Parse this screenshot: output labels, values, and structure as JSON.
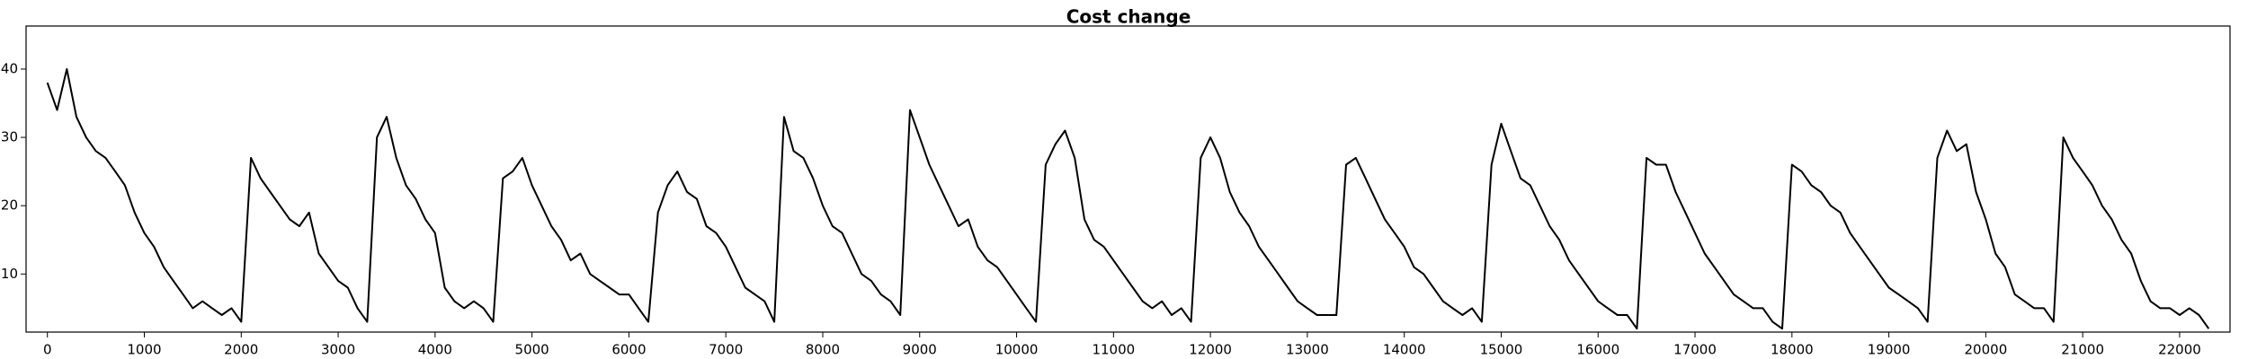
{
  "chart_data": {
    "type": "line",
    "title": "Cost change",
    "x": [
      0,
      100,
      200,
      300,
      400,
      500,
      600,
      700,
      800,
      900,
      1000,
      1100,
      1200,
      1300,
      1400,
      1500,
      1600,
      1700,
      1800,
      1900,
      2000,
      2100,
      2200,
      2300,
      2400,
      2500,
      2600,
      2700,
      2800,
      2900,
      3000,
      3100,
      3200,
      3300,
      3400,
      3500,
      3600,
      3700,
      3800,
      3900,
      4000,
      4100,
      4200,
      4300,
      4400,
      4500,
      4600,
      4700,
      4800,
      4900,
      5000,
      5100,
      5200,
      5300,
      5400,
      5500,
      5600,
      5700,
      5800,
      5900,
      6000,
      6100,
      6200,
      6300,
      6400,
      6500,
      6600,
      6700,
      6800,
      6900,
      7000,
      7100,
      7200,
      7300,
      7400,
      7500,
      7600,
      7700,
      7800,
      7900,
      8000,
      8100,
      8200,
      8300,
      8400,
      8500,
      8600,
      8700,
      8800,
      8900,
      9000,
      9100,
      9200,
      9300,
      9400,
      9500,
      9600,
      9700,
      9800,
      9900,
      10000,
      10100,
      10200,
      10300,
      10400,
      10500,
      10600,
      10700,
      10800,
      10900,
      11000,
      11100,
      11200,
      11300,
      11400,
      11500,
      11600,
      11700,
      11800,
      11900,
      12000,
      12100,
      12200,
      12300,
      12400,
      12500,
      12600,
      12700,
      12800,
      12900,
      13000,
      13100,
      13200,
      13300,
      13400,
      13500,
      13600,
      13700,
      13800,
      13900,
      14000,
      14100,
      14200,
      14300,
      14400,
      14500,
      14600,
      14700,
      14800,
      14900,
      15000,
      15100,
      15200,
      15300,
      15400,
      15500,
      15600,
      15700,
      15800,
      15900,
      16000,
      16100,
      16200,
      16300,
      16400,
      16500,
      16600,
      16700,
      16800,
      16900,
      17000,
      17100,
      17200,
      17300,
      17400,
      17500,
      17600,
      17700,
      17800,
      17900,
      18000,
      18100,
      18200,
      18300,
      18400,
      18500,
      18600,
      18700,
      18800,
      18900,
      19000,
      19100,
      19200,
      19300,
      19400,
      19500,
      19600,
      19700,
      19800,
      19900,
      20000,
      20100,
      20200,
      20300,
      20400,
      20500,
      20600,
      20700,
      20800,
      20900,
      21000,
      21100,
      21200,
      21300,
      21400,
      21500,
      21600,
      21700,
      21800,
      21900,
      22000,
      22100,
      22200,
      22300
    ],
    "series": [
      {
        "color": "#000000",
        "values": [
          38,
          34,
          40,
          33,
          30,
          28,
          27,
          25,
          23,
          19,
          16,
          14,
          11,
          9,
          7,
          5,
          6,
          5,
          4,
          5,
          3,
          27,
          24,
          22,
          20,
          18,
          17,
          19,
          13,
          11,
          9,
          8,
          5,
          3,
          30,
          33,
          27,
          23,
          21,
          18,
          16,
          8,
          6,
          5,
          6,
          5,
          3,
          24,
          25,
          27,
          23,
          20,
          17,
          15,
          12,
          13,
          10,
          9,
          8,
          7,
          7,
          5,
          3,
          19,
          23,
          25,
          22,
          21,
          17,
          16,
          14,
          11,
          8,
          7,
          6,
          3,
          33,
          28,
          27,
          24,
          20,
          17,
          16,
          13,
          10,
          9,
          7,
          6,
          4,
          34,
          30,
          26,
          23,
          20,
          17,
          18,
          14,
          12,
          11,
          9,
          7,
          5,
          3,
          26,
          29,
          31,
          27,
          18,
          15,
          14,
          12,
          10,
          8,
          6,
          5,
          6,
          4,
          5,
          3,
          27,
          30,
          27,
          22,
          19,
          17,
          14,
          12,
          10,
          8,
          6,
          5,
          4,
          4,
          4,
          26,
          27,
          24,
          21,
          18,
          16,
          14,
          11,
          10,
          8,
          6,
          5,
          4,
          5,
          3,
          26,
          32,
          28,
          24,
          23,
          20,
          17,
          15,
          12,
          10,
          8,
          6,
          5,
          4,
          4,
          2,
          27,
          26,
          26,
          22,
          19,
          16,
          13,
          11,
          9,
          7,
          6,
          5,
          5,
          3,
          2,
          26,
          25,
          23,
          22,
          20,
          19,
          16,
          14,
          12,
          10,
          8,
          7,
          6,
          5,
          3,
          27,
          31,
          28,
          29,
          22,
          18,
          13,
          11,
          7,
          6,
          5,
          5,
          3,
          30,
          27,
          25,
          23,
          20,
          18,
          15,
          13,
          9,
          6,
          5,
          5,
          4,
          5,
          4,
          2
        ]
      }
    ],
    "xlim": [
      -220,
      22520
    ],
    "ylim": [
      1.5,
      46.3
    ],
    "xticks": [
      0,
      1000,
      2000,
      3000,
      4000,
      5000,
      6000,
      7000,
      8000,
      9000,
      10000,
      11000,
      12000,
      13000,
      14000,
      15000,
      16000,
      17000,
      18000,
      19000,
      20000,
      21000,
      22000
    ],
    "yticks": [
      10,
      20,
      30,
      40
    ]
  }
}
